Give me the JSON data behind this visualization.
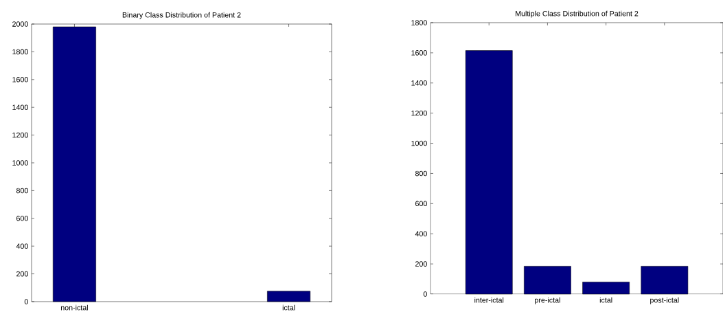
{
  "chart_data": [
    {
      "type": "bar",
      "title": "Binary Class Distribution of Patient 2",
      "categories": [
        "non-ictal",
        "ictal"
      ],
      "values": [
        1980,
        75
      ],
      "color": "#000080",
      "ylim": [
        0,
        2000
      ],
      "yticks": [
        0,
        200,
        400,
        600,
        800,
        1000,
        1200,
        1400,
        1600,
        1800,
        2000
      ]
    },
    {
      "type": "bar",
      "title": "Multiple Class Distribution of Patient 2",
      "categories": [
        "inter-ictal",
        "pre-ictal",
        "ictal",
        "post-ictal"
      ],
      "values": [
        1615,
        185,
        80,
        185
      ],
      "color": "#000080",
      "ylim": [
        0,
        1800
      ],
      "yticks": [
        0,
        200,
        400,
        600,
        800,
        1000,
        1200,
        1400,
        1600,
        1800
      ]
    }
  ]
}
